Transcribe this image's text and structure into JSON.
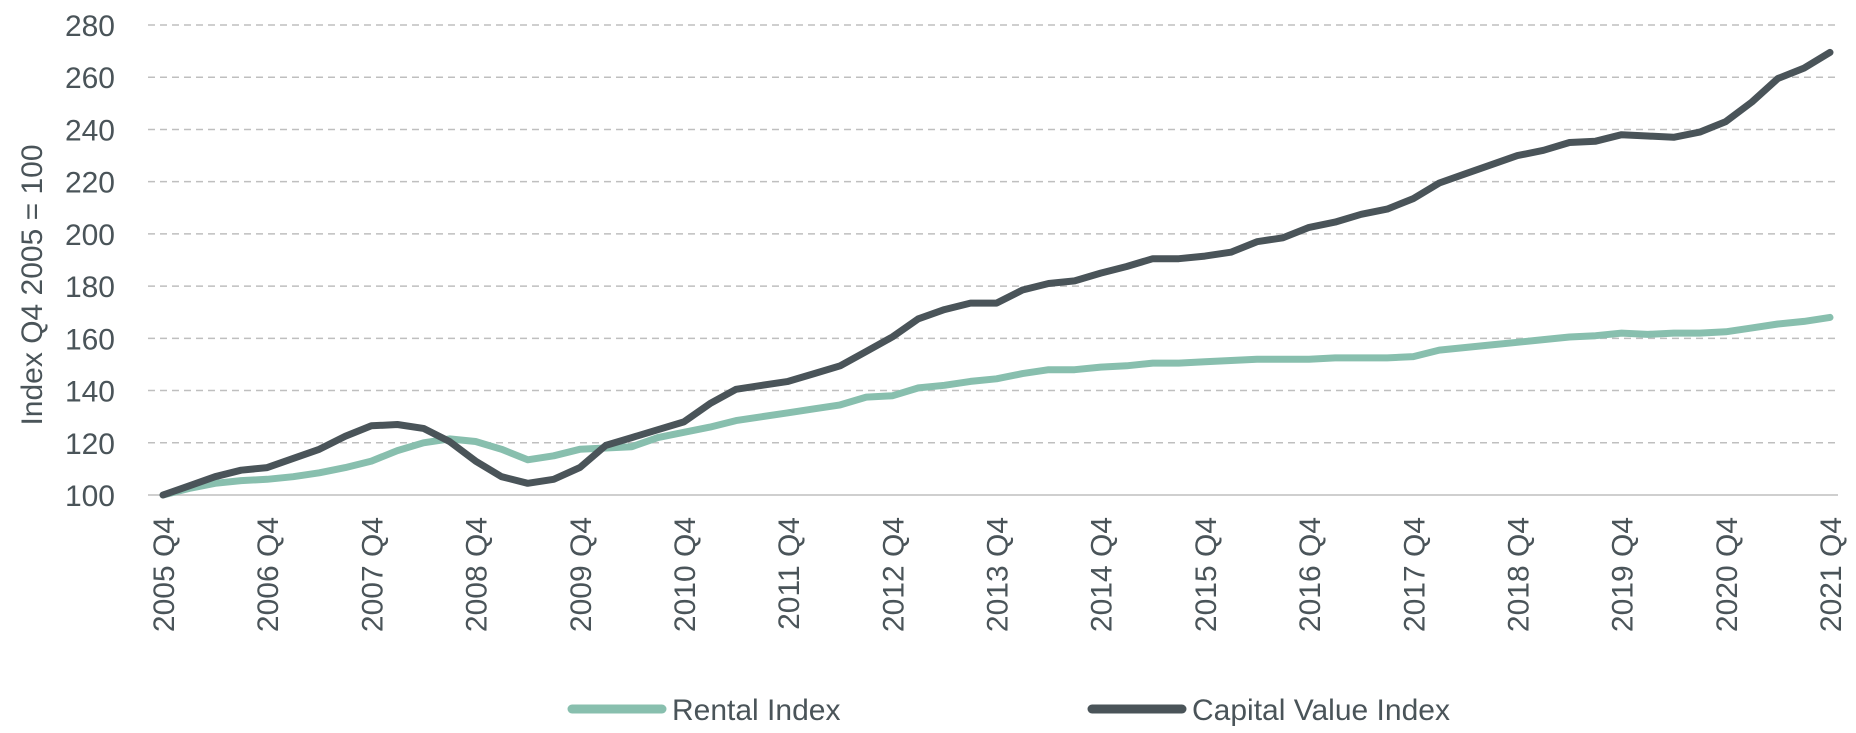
{
  "chart_data": {
    "type": "line",
    "ylabel": "Index Q4 2005 = 100",
    "ylim": [
      100,
      280
    ],
    "yticks": [
      100,
      120,
      140,
      160,
      180,
      200,
      220,
      240,
      260,
      280
    ],
    "x_tick_labels": [
      "2005 Q4",
      "2006 Q4",
      "2007 Q4",
      "2008 Q4",
      "2009 Q4",
      "2010 Q4",
      "2011 Q4",
      "2012 Q4",
      "2013 Q4",
      "2014 Q4",
      "2015 Q4",
      "2016 Q4",
      "2017 Q4",
      "2018 Q4",
      "2019 Q4",
      "2020 Q4",
      "2021 Q4"
    ],
    "quarters_per_tick": 4,
    "grid": true,
    "legend_position": "bottom",
    "series": [
      {
        "name": "Rental Index",
        "color": "#88bfae",
        "values": [
          100,
          102.5,
          104.5,
          105.5,
          106,
          107,
          108.5,
          110.5,
          113,
          117,
          120,
          121.5,
          120.5,
          117.5,
          113.5,
          115,
          117.5,
          118,
          118.5,
          122,
          124,
          126,
          128.5,
          130,
          131.5,
          133,
          134.5,
          137.5,
          138,
          141,
          142,
          143.5,
          144.5,
          146.5,
          148,
          148,
          149,
          149.5,
          150.5,
          150.5,
          151,
          151.5,
          152,
          152,
          152,
          152.5,
          152.5,
          152.5,
          153,
          155.5,
          156.5,
          157.5,
          158.5,
          159.5,
          160.5,
          161,
          162,
          161.5,
          162,
          162,
          162.5,
          164,
          165.5,
          166.5,
          168
        ]
      },
      {
        "name": "Capital Value Index",
        "color": "#4a5459",
        "values": [
          100,
          103.5,
          107,
          109.5,
          110.5,
          114,
          117.5,
          122.5,
          126.5,
          127,
          125.5,
          120.5,
          113,
          107,
          104.5,
          106,
          110.5,
          119,
          122,
          125,
          128,
          135,
          140.5,
          142,
          143.5,
          146.5,
          149.5,
          155,
          160.5,
          167.5,
          171,
          173.5,
          173.5,
          178.5,
          181,
          182,
          185,
          187.5,
          190.5,
          190.5,
          191.5,
          193,
          197,
          198.5,
          202.5,
          204.5,
          207.5,
          209.5,
          213.5,
          219.5,
          223,
          226.5,
          230,
          232,
          235,
          235.5,
          238,
          237.5,
          237,
          239,
          243,
          250.5,
          259.5,
          263.5,
          269.5
        ]
      }
    ]
  }
}
